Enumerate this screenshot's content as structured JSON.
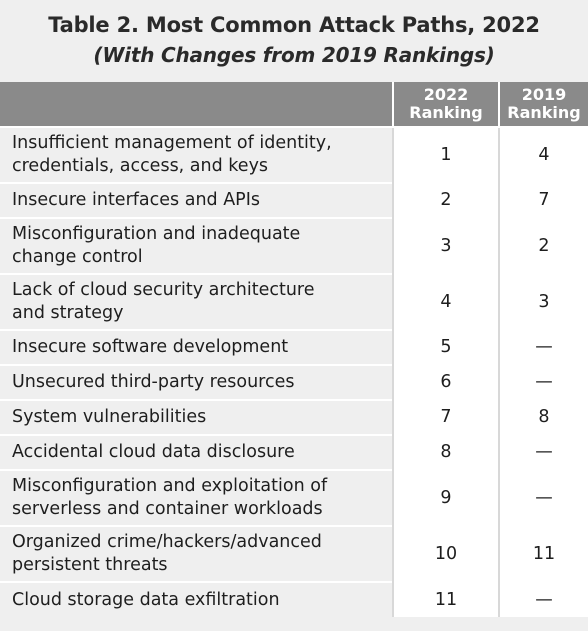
{
  "title": "Table 2. Most Common Attack Paths, 2022",
  "subtitle": "(With Changes from 2019 Rankings)",
  "columns": {
    "path": "",
    "rank_2022_line1": "2022",
    "rank_2022_line2": "Ranking",
    "rank_2019_line1": "2019",
    "rank_2019_line2": "Ranking"
  },
  "rows": [
    {
      "path_line1": "Insufficient management of identity,",
      "path_line2": "credentials, access, and keys",
      "r2022": "1",
      "r2019": "4"
    },
    {
      "path_line1": "Insecure interfaces and APIs",
      "path_line2": "",
      "r2022": "2",
      "r2019": "7"
    },
    {
      "path_line1": "Misconfiguration and inadequate",
      "path_line2": "change control",
      "r2022": "3",
      "r2019": "2"
    },
    {
      "path_line1": "Lack of cloud security architecture",
      "path_line2": "and strategy",
      "r2022": "4",
      "r2019": "3"
    },
    {
      "path_line1": "Insecure software development",
      "path_line2": "",
      "r2022": "5",
      "r2019": "—"
    },
    {
      "path_line1": "Unsecured third-party resources",
      "path_line2": "",
      "r2022": "6",
      "r2019": "—"
    },
    {
      "path_line1": "System vulnerabilities",
      "path_line2": "",
      "r2022": "7",
      "r2019": "8"
    },
    {
      "path_line1": "Accidental cloud data disclosure",
      "path_line2": "",
      "r2022": "8",
      "r2019": "—"
    },
    {
      "path_line1": "Misconfiguration and exploitation of",
      "path_line2": "serverless and container workloads",
      "r2022": "9",
      "r2019": "—"
    },
    {
      "path_line1": "Organized crime/hackers/advanced",
      "path_line2": "persistent threats",
      "r2022": "10",
      "r2019": "11"
    },
    {
      "path_line1": "Cloud storage data exfiltration",
      "path_line2": "",
      "r2022": "11",
      "r2019": "—"
    }
  ]
}
